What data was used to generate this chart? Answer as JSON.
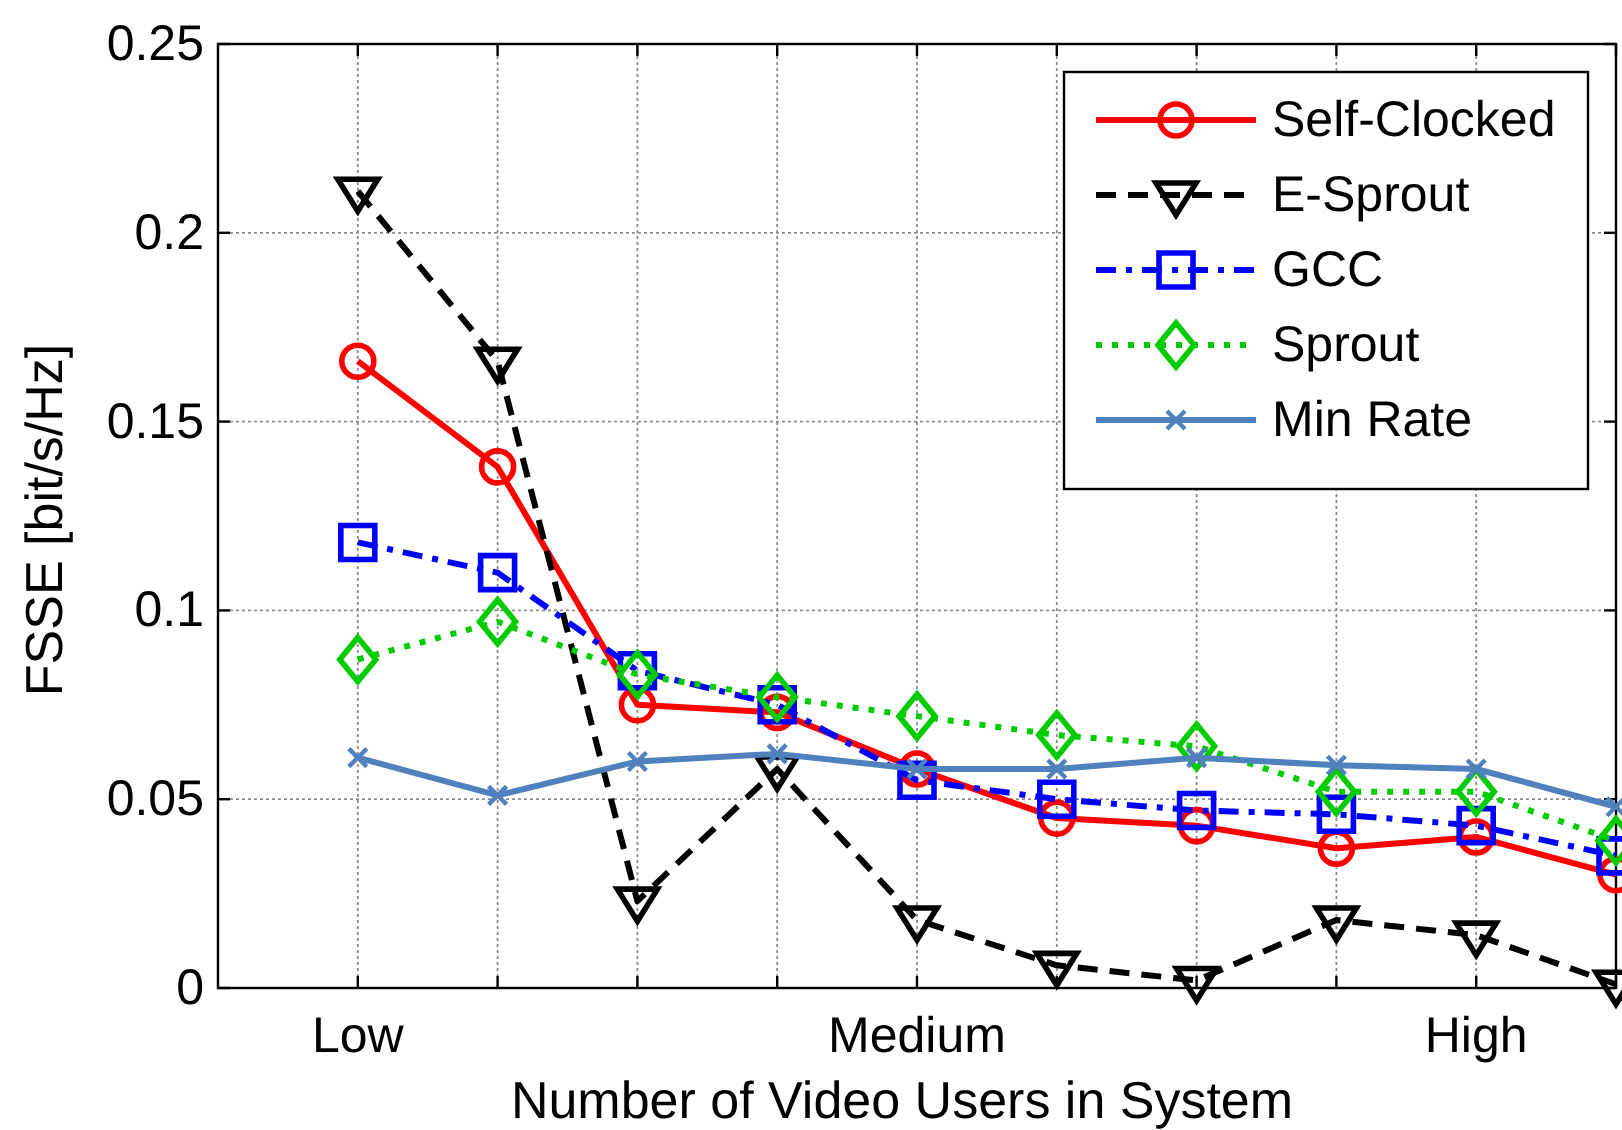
{
  "chart_data": {
    "type": "line",
    "xlabel": "Number of Video Users in System",
    "ylabel": "FSSE [bit/s/Hz]",
    "categories": [
      "Low",
      null,
      null,
      null,
      "Medium",
      null,
      null,
      null,
      "High",
      null
    ],
    "ylim": [
      0,
      0.25
    ],
    "yticks": [
      0,
      0.05,
      0.1,
      0.15,
      0.2,
      0.25
    ],
    "grid": true,
    "legend": "top right",
    "series": [
      {
        "name": "Self-Clocked",
        "color": "#ff0000",
        "marker": "circle",
        "line_style": "solid",
        "values": [
          0.166,
          0.138,
          0.075,
          0.073,
          0.058,
          0.045,
          0.043,
          0.037,
          0.04,
          0.03
        ]
      },
      {
        "name": "E-Sprout",
        "color": "#000000",
        "marker": "triangle",
        "line_style": "dashed",
        "values": [
          0.211,
          0.166,
          0.023,
          0.058,
          0.018,
          0.006,
          0.002,
          0.018,
          0.014,
          0.001
        ]
      },
      {
        "name": "GCC",
        "color": "#0000ff",
        "marker": "square",
        "line_style": "dashdot",
        "values": [
          0.118,
          0.11,
          0.084,
          0.075,
          0.055,
          0.05,
          0.047,
          0.046,
          0.043,
          0.035
        ]
      },
      {
        "name": "Sprout",
        "color": "#00cc00",
        "marker": "diamond",
        "line_style": "dotted",
        "values": [
          0.087,
          0.097,
          0.083,
          0.077,
          0.072,
          0.067,
          0.064,
          0.052,
          0.052,
          0.039
        ]
      },
      {
        "name": "Min Rate",
        "color": "#4f81bd",
        "marker": "cross",
        "line_style": "solid",
        "values": [
          0.061,
          0.051,
          0.06,
          0.062,
          0.058,
          0.058,
          0.061,
          0.059,
          0.058,
          0.048
        ]
      }
    ]
  }
}
